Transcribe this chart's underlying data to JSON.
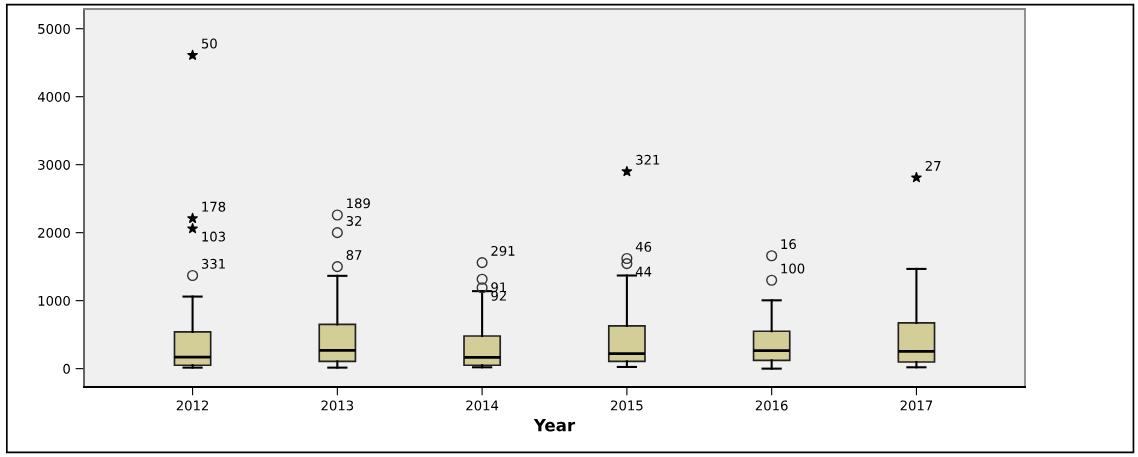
{
  "chart_data": {
    "type": "box",
    "xlabel": "Year",
    "categories": [
      "2012",
      "2013",
      "2014",
      "2015",
      "2016",
      "2017"
    ],
    "color": "#d3cd98",
    "ylim": [
      -270,
      5290
    ],
    "yticks": [
      0,
      1000,
      2000,
      3000,
      4000,
      5000
    ],
    "grid": false,
    "legend": false,
    "boxes": [
      {
        "low": 15,
        "q1": 50,
        "median": 170,
        "q3": 540,
        "high": 1060
      },
      {
        "low": 15,
        "q1": 107,
        "median": 270,
        "q3": 650,
        "high": 1365
      },
      {
        "low": 20,
        "q1": 50,
        "median": 165,
        "q3": 480,
        "high": 1140
      },
      {
        "low": 25,
        "q1": 107,
        "median": 220,
        "q3": 630,
        "high": 1370
      },
      {
        "low": 0,
        "q1": 122,
        "median": 265,
        "q3": 550,
        "high": 1005
      },
      {
        "low": 20,
        "q1": 98,
        "median": 255,
        "q3": 672,
        "high": 1467
      }
    ],
    "series": [
      {
        "type": "scatter",
        "marker": "circle",
        "color": "#333333",
        "values": [
          1370,
          1500,
          1190,
          1545,
          1300,
          null
        ]
      },
      {
        "type": "scatter",
        "marker": "circle",
        "color": "#333333",
        "values": [
          null,
          2000,
          1315,
          1620,
          1660,
          null
        ]
      },
      {
        "type": "scatter",
        "marker": "circle",
        "color": "#333333",
        "values": [
          null,
          2260,
          1560,
          null,
          null,
          null
        ]
      },
      {
        "type": "scatter",
        "marker": "star",
        "color": "#000000",
        "values": [
          2060,
          null,
          null,
          2900,
          null,
          2810
        ]
      },
      {
        "type": "scatter",
        "marker": "star",
        "color": "#000000",
        "values": [
          2210,
          null,
          null,
          null,
          null,
          null
        ]
      },
      {
        "type": "scatter",
        "marker": "star",
        "color": "#000000",
        "values": [
          4610,
          null,
          null,
          null,
          null,
          null
        ]
      }
    ],
    "annotations": [
      {
        "text": "331",
        "x": "2012",
        "y": 1370
      },
      {
        "text": "103",
        "x": "2012",
        "y": 2060
      },
      {
        "text": "178",
        "x": "2012",
        "y": 2210
      },
      {
        "text": "50",
        "x": "2012",
        "y": 4610
      },
      {
        "text": "87",
        "x": "2013",
        "y": 1500
      },
      {
        "text": "32",
        "x": "2013",
        "y": 2000
      },
      {
        "text": "189",
        "x": "2013",
        "y": 2260
      },
      {
        "text": "92",
        "x": "2014",
        "y": 1190
      },
      {
        "text": "91",
        "x": "2014",
        "y": 1315
      },
      {
        "text": "291",
        "x": "2014",
        "y": 1560
      },
      {
        "text": "44",
        "x": "2015",
        "y": 1545
      },
      {
        "text": "46",
        "x": "2015",
        "y": 1620
      },
      {
        "text": "321",
        "x": "2015",
        "y": 2900
      },
      {
        "text": "100",
        "x": "2016",
        "y": 1300
      },
      {
        "text": "16",
        "x": "2016",
        "y": 1660
      },
      {
        "text": "27",
        "x": "2017",
        "y": 2810
      }
    ]
  }
}
